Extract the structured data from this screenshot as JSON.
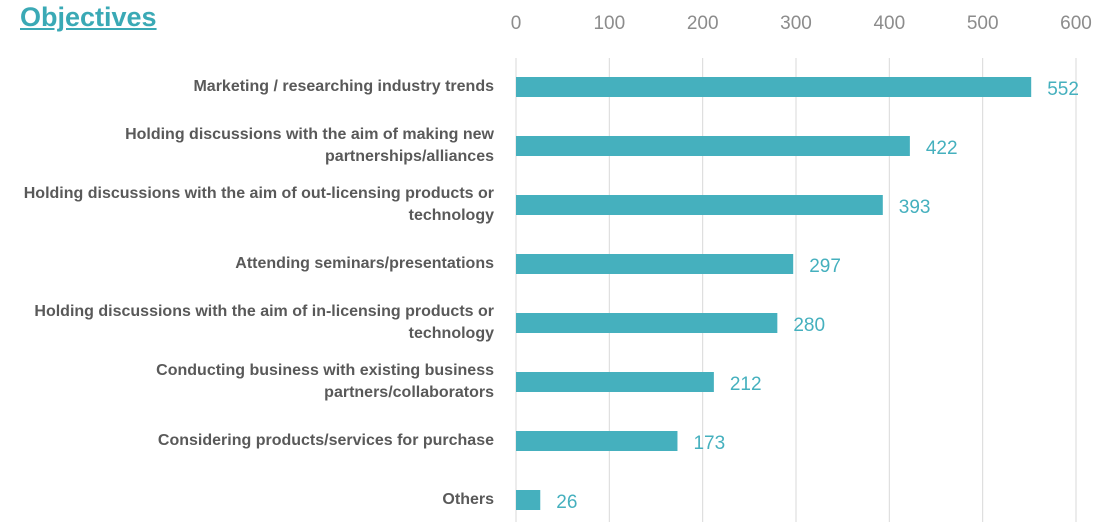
{
  "chart_data": {
    "type": "bar",
    "orientation": "horizontal",
    "title": "Objectives",
    "categories": [
      "Marketing / researching industry trends",
      "Holding discussions with the aim of making new partnerships/alliances",
      "Holding discussions with the aim of out-licensing products or technology",
      "Attending seminars/presentations",
      "Holding discussions with the aim of in-licensing products or technology",
      "Conducting business with existing business partners/collaborators",
      "Considering products/services for purchase",
      "Others"
    ],
    "values": [
      552,
      422,
      393,
      297,
      280,
      212,
      173,
      26
    ],
    "color": "#45b0be",
    "xlim": [
      0,
      600
    ],
    "xticks": [
      0,
      100,
      200,
      300,
      400,
      500,
      600
    ],
    "grid": true
  }
}
